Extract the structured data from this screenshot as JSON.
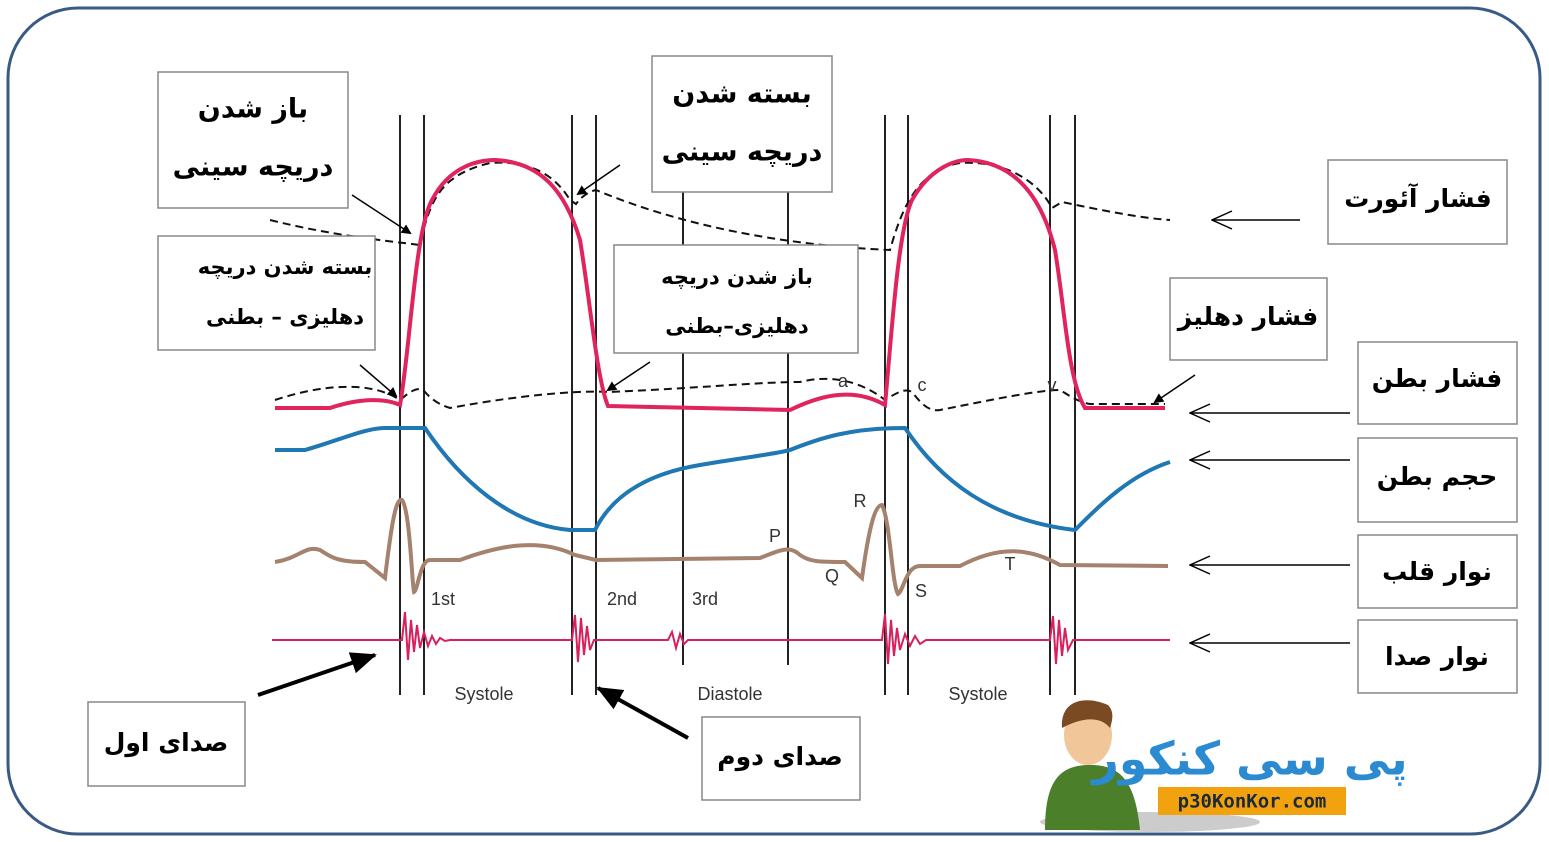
{
  "callouts": [
    {
      "lines": [
        "باز شدن",
        "دریچه  سینی"
      ]
    },
    {
      "lines": [
        "بسته شدن",
        "دریچه سینی"
      ]
    },
    {
      "lines": [
        "بسته شدن دریچه",
        "دهلیزی – بطنی"
      ]
    },
    {
      "lines": [
        "باز شدن دریچه",
        "دهلیزی–بطنی"
      ]
    },
    {
      "lines": [
        "صدای اول"
      ]
    },
    {
      "lines": [
        "صدای دوم"
      ]
    }
  ],
  "traces": [
    "فشار آئورت",
    "فشار دهلیز",
    "فشار بطن",
    "حجم بطن",
    "نوار قلب",
    "نوار صدا"
  ],
  "wave_labels": [
    "a",
    "c",
    "v",
    "P",
    "Q",
    "R",
    "S",
    "T"
  ],
  "sounds": [
    "1st",
    "2nd",
    "3rd"
  ],
  "phases": [
    "Systole",
    "Diastole",
    "Systole"
  ],
  "logo": {
    "name": "پی سی کنکور",
    "url": "p30KonKor.com"
  }
}
